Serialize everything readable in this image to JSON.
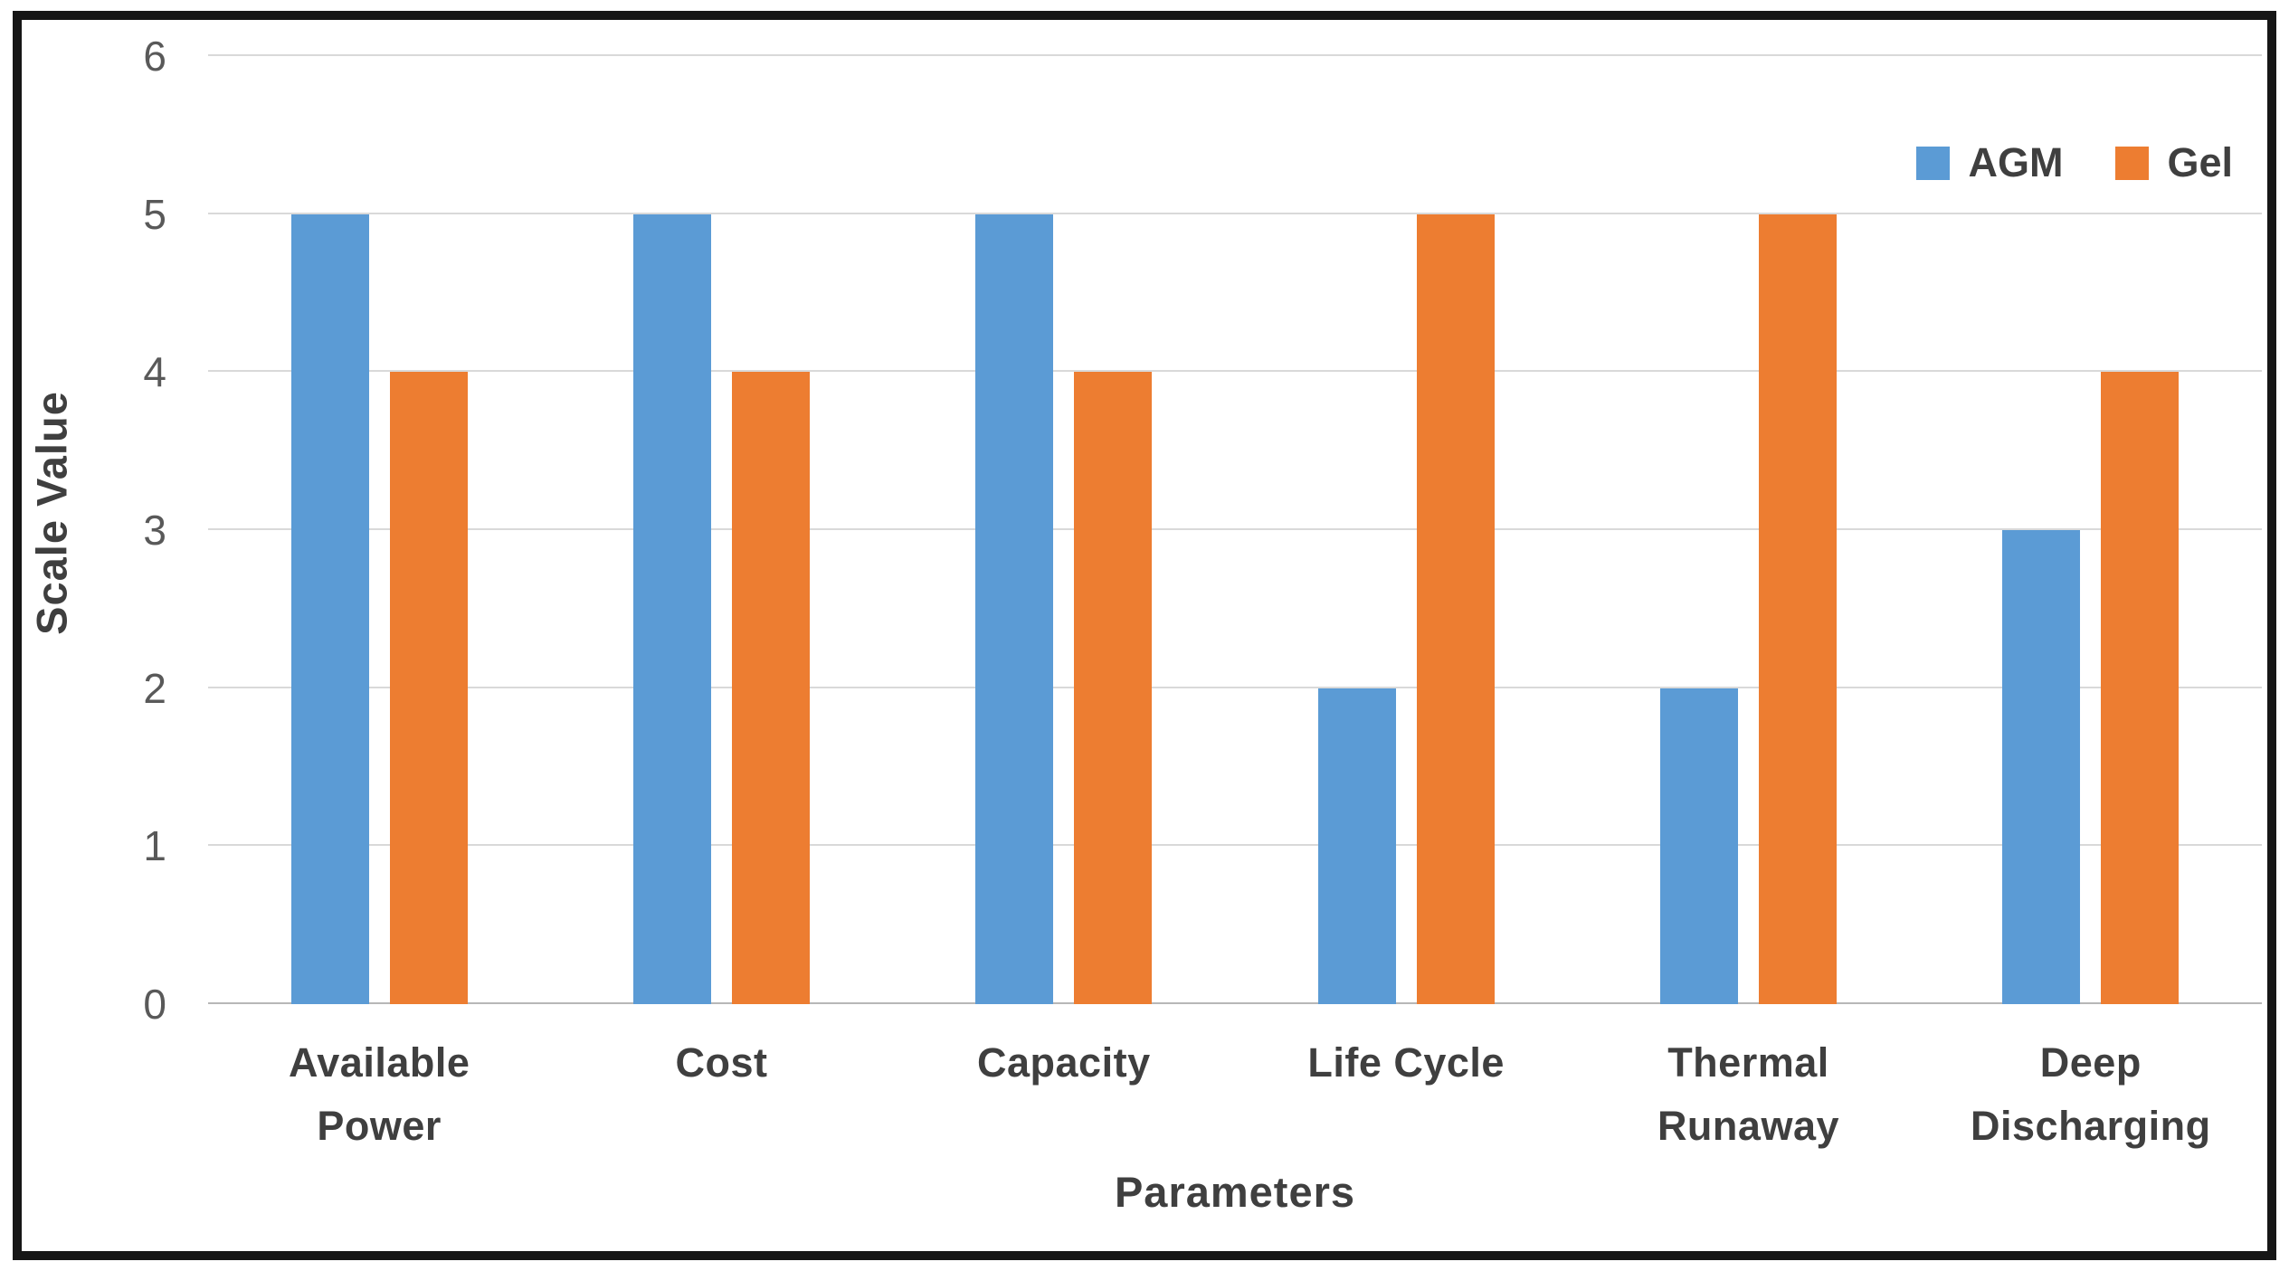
{
  "chart_data": {
    "type": "bar",
    "title": "",
    "categories": [
      "Available Power",
      "Cost",
      "Capacity",
      "Life Cycle",
      "Thermal Runaway",
      "Deep Discharging"
    ],
    "series": [
      {
        "name": "AGM",
        "color": "#5B9BD5",
        "values": [
          5,
          5,
          5,
          2,
          2,
          3
        ]
      },
      {
        "name": "Gel",
        "color": "#ED7D31",
        "values": [
          4,
          4,
          4,
          5,
          5,
          4
        ]
      }
    ],
    "xlabel": "Parameters",
    "ylabel": "Scale Value",
    "ylim": [
      0,
      6
    ],
    "yticks": [
      0,
      1,
      2,
      3,
      4,
      5,
      6
    ],
    "grid": "horizontal",
    "legend_position": "top-right",
    "colors": {
      "agm_blue": "#5B9BD5",
      "gel_orange": "#ED7D31",
      "gridline": "#D9D9D9",
      "axis_line": "#B7B7B7",
      "tick_text": "#595959",
      "label_text": "#3F3F3F",
      "frame_border": "#161616",
      "background": "#FFFFFF"
    }
  }
}
